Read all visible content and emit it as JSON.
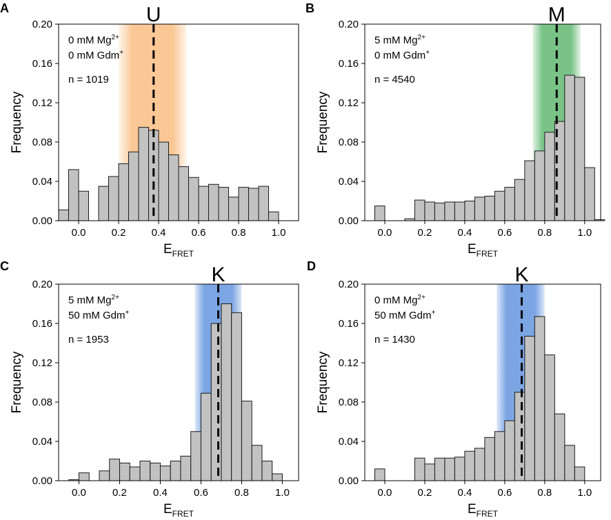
{
  "figure": {
    "panels": [
      "A",
      "B",
      "C",
      "D"
    ]
  },
  "chart_data": [
    {
      "panel": "A",
      "type": "bar",
      "state_label": "U",
      "band_color": "#f7a24e",
      "annotation_lines": [
        {
          "main": "0 mM Mg",
          "sup": "2+"
        },
        {
          "main": "0 mM Gdm",
          "sup": "+"
        }
      ],
      "n_label": "n = 1019",
      "xlabel": "E",
      "xlabel_sub": "FRET",
      "ylabel": "Frequency",
      "xlim": [
        -0.1,
        1.1
      ],
      "ylim": [
        0,
        0.2
      ],
      "xticks": [
        "0.0",
        "0.2",
        "0.4",
        "0.6",
        "0.8",
        "1.0"
      ],
      "yticks": [
        "0.00",
        "0.04",
        "0.08",
        "0.12",
        "0.16",
        "0.20"
      ],
      "band_range": [
        0.2,
        0.54
      ],
      "dashed_line": 0.375,
      "bin_width": 0.05,
      "bin_starts": [
        -0.1,
        -0.05,
        0.0,
        0.05,
        0.1,
        0.15,
        0.2,
        0.25,
        0.3,
        0.35,
        0.4,
        0.45,
        0.5,
        0.55,
        0.6,
        0.65,
        0.7,
        0.75,
        0.8,
        0.85,
        0.9,
        0.95,
        1.0,
        1.05
      ],
      "values": [
        0.011,
        0.052,
        0.03,
        0.0,
        0.035,
        0.045,
        0.058,
        0.07,
        0.095,
        0.092,
        0.08,
        0.067,
        0.055,
        0.044,
        0.035,
        0.037,
        0.034,
        0.024,
        0.034,
        0.033,
        0.035,
        0.009,
        0.0,
        0.0
      ]
    },
    {
      "panel": "B",
      "type": "bar",
      "state_label": "M",
      "band_color": "#4caf5f",
      "annotation_lines": [
        {
          "main": "5 mM Mg",
          "sup": "2+"
        },
        {
          "main": "0 mM Gdm",
          "sup": "+"
        }
      ],
      "n_label": "n = 4540",
      "xlabel": "E",
      "xlabel_sub": "FRET",
      "ylabel": "Frequency",
      "xlim": [
        -0.1,
        1.08
      ],
      "ylim": [
        0,
        0.2
      ],
      "xticks": [
        "0.0",
        "0.2",
        "0.4",
        "0.6",
        "0.8",
        "1.0"
      ],
      "yticks": [
        "0.00",
        "0.04",
        "0.08",
        "0.12",
        "0.16",
        "0.20"
      ],
      "band_range": [
        0.74,
        0.98
      ],
      "dashed_line": 0.86,
      "bin_width": 0.05,
      "bin_starts": [
        -0.05,
        0.0,
        0.05,
        0.1,
        0.15,
        0.2,
        0.25,
        0.3,
        0.35,
        0.4,
        0.45,
        0.5,
        0.55,
        0.6,
        0.65,
        0.7,
        0.75,
        0.8,
        0.85,
        0.9,
        0.95,
        1.0,
        1.05
      ],
      "values": [
        0.015,
        0.0,
        0.0,
        0.002,
        0.021,
        0.019,
        0.018,
        0.019,
        0.019,
        0.02,
        0.024,
        0.025,
        0.03,
        0.034,
        0.042,
        0.061,
        0.071,
        0.09,
        0.101,
        0.148,
        0.146,
        0.054,
        0.001
      ]
    },
    {
      "panel": "C",
      "type": "bar",
      "state_label": "K",
      "band_color": "#5b8fdc",
      "annotation_lines": [
        {
          "main": "5 mM Mg",
          "sup": "2+"
        },
        {
          "main": "50 mM Gdm",
          "sup": "+"
        }
      ],
      "n_label": "n = 1953",
      "xlabel": "E",
      "xlabel_sub": "FRET",
      "ylabel": "Frequency",
      "xlim": [
        -0.1,
        1.08
      ],
      "ylim": [
        0,
        0.2
      ],
      "xticks": [
        "0.0",
        "0.2",
        "0.4",
        "0.6",
        "0.8",
        "1.0"
      ],
      "yticks": [
        "0.00",
        "0.04",
        "0.08",
        "0.12",
        "0.16",
        "0.20"
      ],
      "band_range": [
        0.57,
        0.8
      ],
      "dashed_line": 0.685,
      "bin_width": 0.05,
      "bin_starts": [
        -0.05,
        0.0,
        0.05,
        0.1,
        0.15,
        0.2,
        0.25,
        0.3,
        0.35,
        0.4,
        0.45,
        0.5,
        0.55,
        0.6,
        0.65,
        0.7,
        0.75,
        0.8,
        0.85,
        0.9,
        0.95
      ],
      "values": [
        0.001,
        0.008,
        0.0,
        0.01,
        0.022,
        0.018,
        0.014,
        0.02,
        0.018,
        0.015,
        0.02,
        0.025,
        0.05,
        0.089,
        0.16,
        0.18,
        0.171,
        0.081,
        0.036,
        0.02,
        0.007
      ]
    },
    {
      "panel": "D",
      "type": "bar",
      "state_label": "K",
      "band_color": "#5b8fdc",
      "annotation_lines": [
        {
          "main": "0 mM Mg",
          "sup": "2+"
        },
        {
          "main": "50 mM Gdm",
          "sup": "+"
        }
      ],
      "n_label": "n = 1430",
      "xlabel": "E",
      "xlabel_sub": "FRET",
      "ylabel": "Frequency",
      "xlim": [
        -0.1,
        1.08
      ],
      "ylim": [
        0,
        0.2
      ],
      "xticks": [
        "0.0",
        "0.2",
        "0.4",
        "0.6",
        "0.8",
        "1.0"
      ],
      "yticks": [
        "0.00",
        "0.04",
        "0.08",
        "0.12",
        "0.16",
        "0.20"
      ],
      "band_range": [
        0.56,
        0.8
      ],
      "dashed_line": 0.685,
      "bin_width": 0.05,
      "bin_starts": [
        -0.05,
        0.0,
        0.05,
        0.1,
        0.15,
        0.2,
        0.25,
        0.3,
        0.35,
        0.4,
        0.45,
        0.5,
        0.55,
        0.6,
        0.65,
        0.7,
        0.75,
        0.8,
        0.85,
        0.9,
        0.95
      ],
      "values": [
        0.012,
        0.0,
        0.0,
        0.0,
        0.023,
        0.017,
        0.023,
        0.023,
        0.024,
        0.03,
        0.033,
        0.044,
        0.05,
        0.061,
        0.09,
        0.147,
        0.167,
        0.128,
        0.068,
        0.036,
        0.014
      ]
    }
  ]
}
